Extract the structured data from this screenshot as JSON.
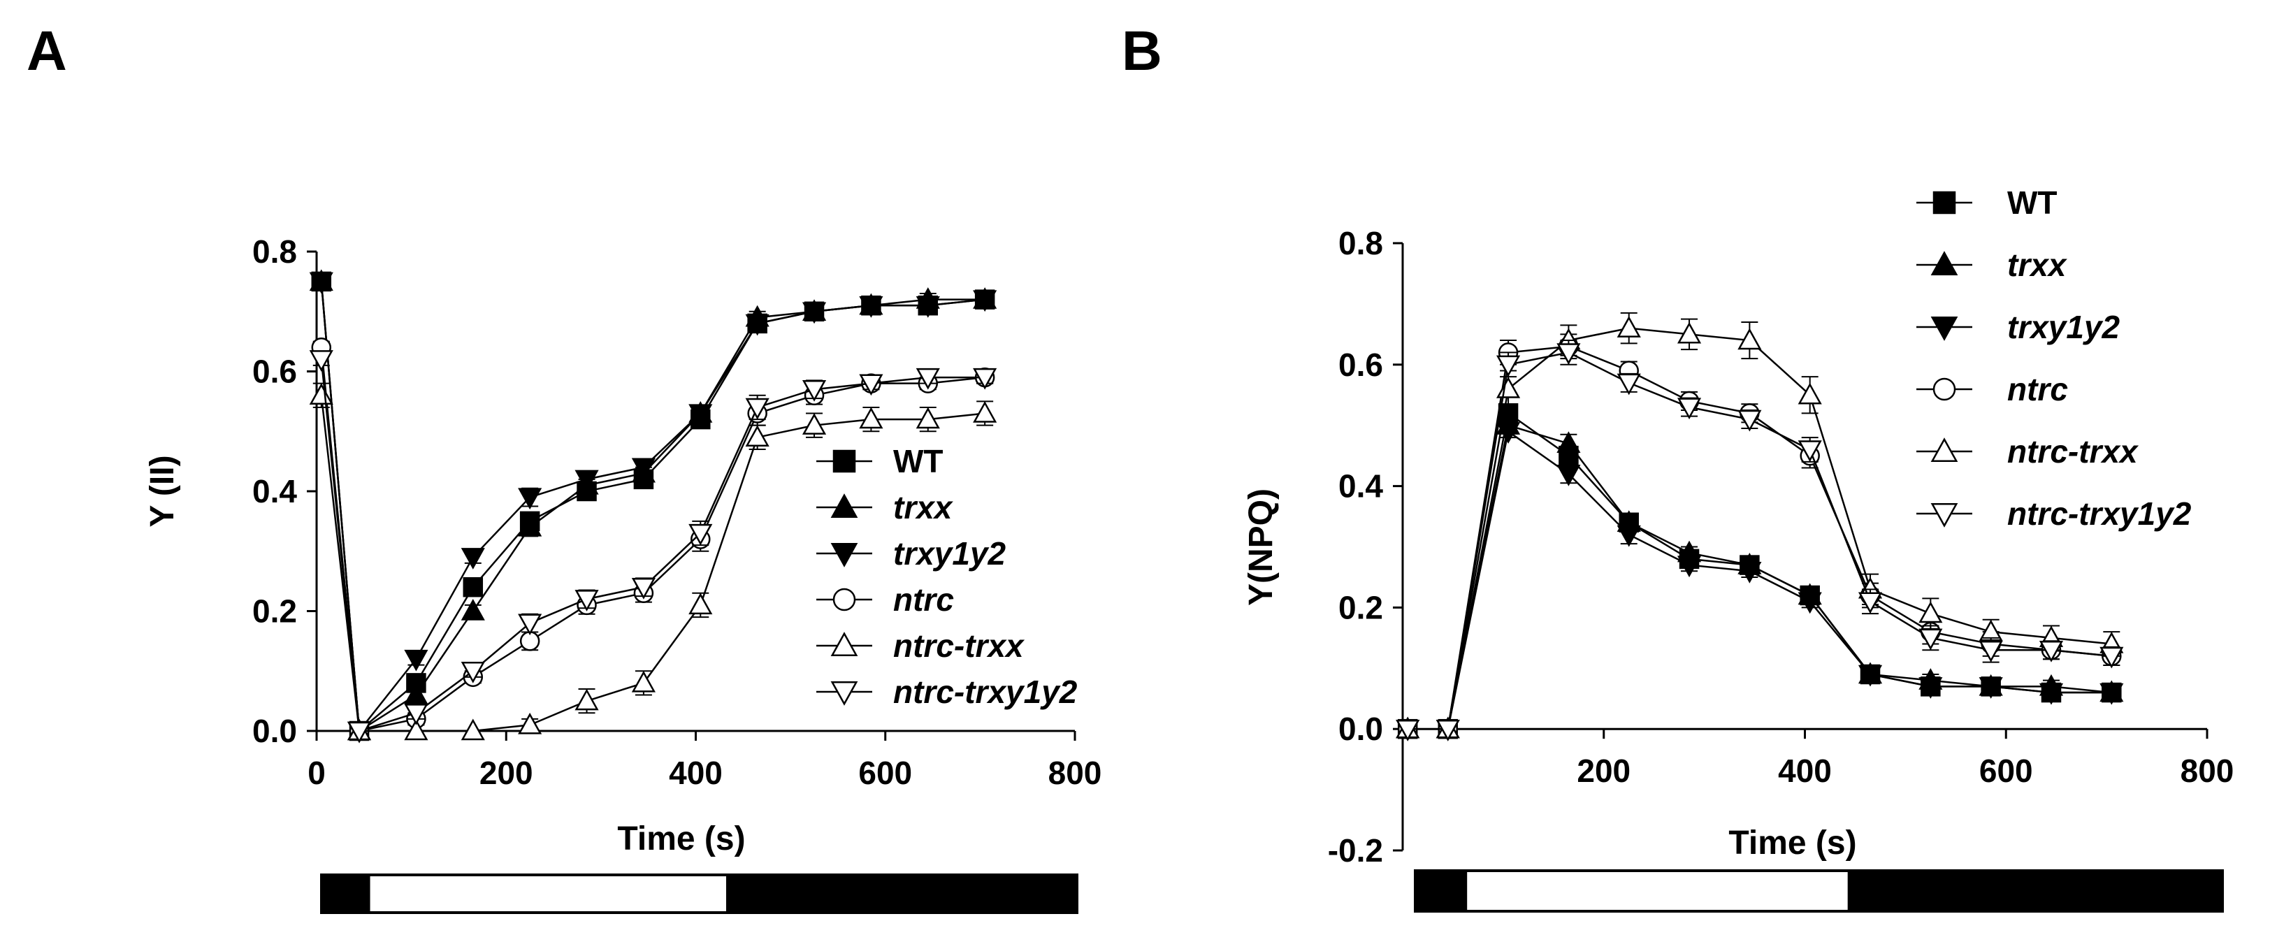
{
  "panels": [
    {
      "label": "A",
      "chart_data": {
        "type": "line",
        "title": "",
        "xlabel": "Time (s)",
        "ylabel": "Y (II)",
        "xlim": [
          0,
          800
        ],
        "ylim": [
          0,
          0.8
        ],
        "xticks": [
          0,
          200,
          400,
          600,
          800
        ],
        "yticks": [
          0.0,
          0.2,
          0.4,
          0.6,
          0.8
        ],
        "xtick_labels": [
          "0",
          "200",
          "400",
          "600",
          "800"
        ],
        "ytick_labels": [
          "0.0",
          "0.2",
          "0.4",
          "0.6",
          "0.8"
        ],
        "grid": false,
        "legend_position": "lower-right",
        "x": [
          5,
          45,
          105,
          165,
          225,
          285,
          345,
          405,
          465,
          525,
          585,
          645,
          705
        ],
        "series": [
          {
            "name": "WT",
            "marker": "filled-square",
            "values": [
              0.75,
              0.0,
              0.08,
              0.24,
              0.35,
              0.4,
              0.42,
              0.52,
              0.68,
              0.7,
              0.71,
              0.71,
              0.72
            ],
            "errors": [
              0.01,
              0.0,
              0.01,
              0.01,
              0.015,
              0.01,
              0.01,
              0.01,
              0.01,
              0.01,
              0.01,
              0.01,
              0.01
            ]
          },
          {
            "name": "trxx",
            "marker": "filled-triangle-up",
            "values": [
              0.75,
              0.0,
              0.06,
              0.2,
              0.34,
              0.41,
              0.43,
              0.53,
              0.69,
              0.7,
              0.71,
              0.72,
              0.72
            ],
            "errors": [
              0.01,
              0.0,
              0.01,
              0.01,
              0.015,
              0.01,
              0.01,
              0.01,
              0.01,
              0.01,
              0.01,
              0.01,
              0.01
            ]
          },
          {
            "name": "trxy1y2",
            "marker": "filled-triangle-down",
            "values": [
              0.75,
              0.0,
              0.12,
              0.29,
              0.39,
              0.42,
              0.44,
              0.53,
              0.68,
              0.7,
              0.71,
              0.71,
              0.72
            ],
            "errors": [
              0.01,
              0.0,
              0.01,
              0.01,
              0.015,
              0.01,
              0.01,
              0.01,
              0.01,
              0.01,
              0.01,
              0.01,
              0.01
            ]
          },
          {
            "name": "ntrc",
            "marker": "open-circle",
            "values": [
              0.64,
              0.0,
              0.02,
              0.09,
              0.15,
              0.21,
              0.23,
              0.32,
              0.53,
              0.56,
              0.58,
              0.58,
              0.59
            ],
            "errors": [
              0.01,
              0.0,
              0.01,
              0.01,
              0.015,
              0.015,
              0.015,
              0.02,
              0.02,
              0.015,
              0.01,
              0.01,
              0.01
            ]
          },
          {
            "name": "ntrc-trxx",
            "marker": "open-triangle-up",
            "values": [
              0.56,
              0.0,
              0.0,
              0.0,
              0.01,
              0.05,
              0.08,
              0.21,
              0.49,
              0.51,
              0.52,
              0.52,
              0.53
            ],
            "errors": [
              0.02,
              0.0,
              0.0,
              0.0,
              0.01,
              0.02,
              0.02,
              0.02,
              0.02,
              0.02,
              0.02,
              0.02,
              0.02
            ]
          },
          {
            "name": "ntrc-trxy1y2",
            "marker": "open-triangle-down",
            "values": [
              0.62,
              0.0,
              0.03,
              0.1,
              0.18,
              0.22,
              0.24,
              0.33,
              0.54,
              0.57,
              0.58,
              0.59,
              0.59
            ],
            "errors": [
              0.01,
              0.0,
              0.01,
              0.01,
              0.015,
              0.015,
              0.015,
              0.02,
              0.02,
              0.015,
              0.01,
              0.01,
              0.01
            ]
          }
        ],
        "light_bar": [
          {
            "from": 0,
            "to": 50,
            "state": "dark"
          },
          {
            "from": 50,
            "to": 430,
            "state": "light"
          },
          {
            "from": 430,
            "to": 800,
            "state": "dark"
          }
        ]
      }
    },
    {
      "label": "B",
      "chart_data": {
        "type": "line",
        "title": "",
        "xlabel": "Time (s)",
        "ylabel": "Y(NPQ)",
        "xlim": [
          0,
          800
        ],
        "ylim": [
          -0.2,
          0.8
        ],
        "xticks": [
          200,
          400,
          600,
          800
        ],
        "yticks": [
          -0.2,
          0.0,
          0.2,
          0.4,
          0.6,
          0.8
        ],
        "xtick_labels": [
          "200",
          "400",
          "600",
          "800"
        ],
        "ytick_labels": [
          "-0.2",
          "0.0",
          "0.2",
          "0.4",
          "0.6",
          "0.8"
        ],
        "grid": false,
        "legend_position": "top-right",
        "x": [
          5,
          45,
          105,
          165,
          225,
          285,
          345,
          405,
          465,
          525,
          585,
          645,
          705
        ],
        "series": [
          {
            "name": "WT",
            "marker": "filled-square",
            "values": [
              0.0,
              0.0,
              0.52,
              0.45,
              0.34,
              0.28,
              0.27,
              0.22,
              0.09,
              0.07,
              0.07,
              0.06,
              0.06
            ],
            "errors": [
              0.0,
              0.0,
              0.01,
              0.015,
              0.015,
              0.01,
              0.01,
              0.01,
              0.01,
              0.01,
              0.01,
              0.01,
              0.01
            ]
          },
          {
            "name": "trxx",
            "marker": "filled-triangle-up",
            "values": [
              0.0,
              0.0,
              0.5,
              0.47,
              0.34,
              0.29,
              0.27,
              0.22,
              0.09,
              0.08,
              0.07,
              0.07,
              0.06
            ],
            "errors": [
              0.0,
              0.0,
              0.01,
              0.015,
              0.015,
              0.01,
              0.01,
              0.01,
              0.01,
              0.01,
              0.01,
              0.01,
              0.01
            ]
          },
          {
            "name": "trxy1y2",
            "marker": "filled-triangle-down",
            "values": [
              0.0,
              0.0,
              0.49,
              0.42,
              0.32,
              0.27,
              0.26,
              0.21,
              0.09,
              0.07,
              0.07,
              0.06,
              0.06
            ],
            "errors": [
              0.0,
              0.0,
              0.01,
              0.015,
              0.015,
              0.01,
              0.01,
              0.01,
              0.01,
              0.01,
              0.01,
              0.01,
              0.01
            ]
          },
          {
            "name": "ntrc",
            "marker": "open-circle",
            "values": [
              0.0,
              0.0,
              0.62,
              0.63,
              0.59,
              0.54,
              0.52,
              0.45,
              0.22,
              0.16,
              0.14,
              0.13,
              0.12
            ],
            "errors": [
              0.0,
              0.0,
              0.02,
              0.02,
              0.015,
              0.015,
              0.015,
              0.02,
              0.02,
              0.02,
              0.02,
              0.015,
              0.015
            ]
          },
          {
            "name": "ntrc-trxx",
            "marker": "open-triangle-up",
            "values": [
              0.0,
              0.0,
              0.56,
              0.64,
              0.66,
              0.65,
              0.64,
              0.55,
              0.23,
              0.19,
              0.16,
              0.15,
              0.14
            ],
            "errors": [
              0.0,
              0.0,
              0.03,
              0.025,
              0.025,
              0.025,
              0.03,
              0.03,
              0.025,
              0.025,
              0.02,
              0.02,
              0.02
            ]
          },
          {
            "name": "ntrc-trxy1y2",
            "marker": "open-triangle-down",
            "values": [
              0.0,
              0.0,
              0.6,
              0.62,
              0.57,
              0.53,
              0.51,
              0.46,
              0.21,
              0.15,
              0.13,
              0.13,
              0.12
            ],
            "errors": [
              0.0,
              0.0,
              0.02,
              0.02,
              0.015,
              0.015,
              0.015,
              0.02,
              0.02,
              0.02,
              0.02,
              0.015,
              0.015
            ]
          }
        ],
        "light_bar": [
          {
            "from": 0,
            "to": 50,
            "state": "dark"
          },
          {
            "from": 50,
            "to": 430,
            "state": "light"
          },
          {
            "from": 430,
            "to": 800,
            "state": "dark"
          }
        ]
      }
    }
  ]
}
